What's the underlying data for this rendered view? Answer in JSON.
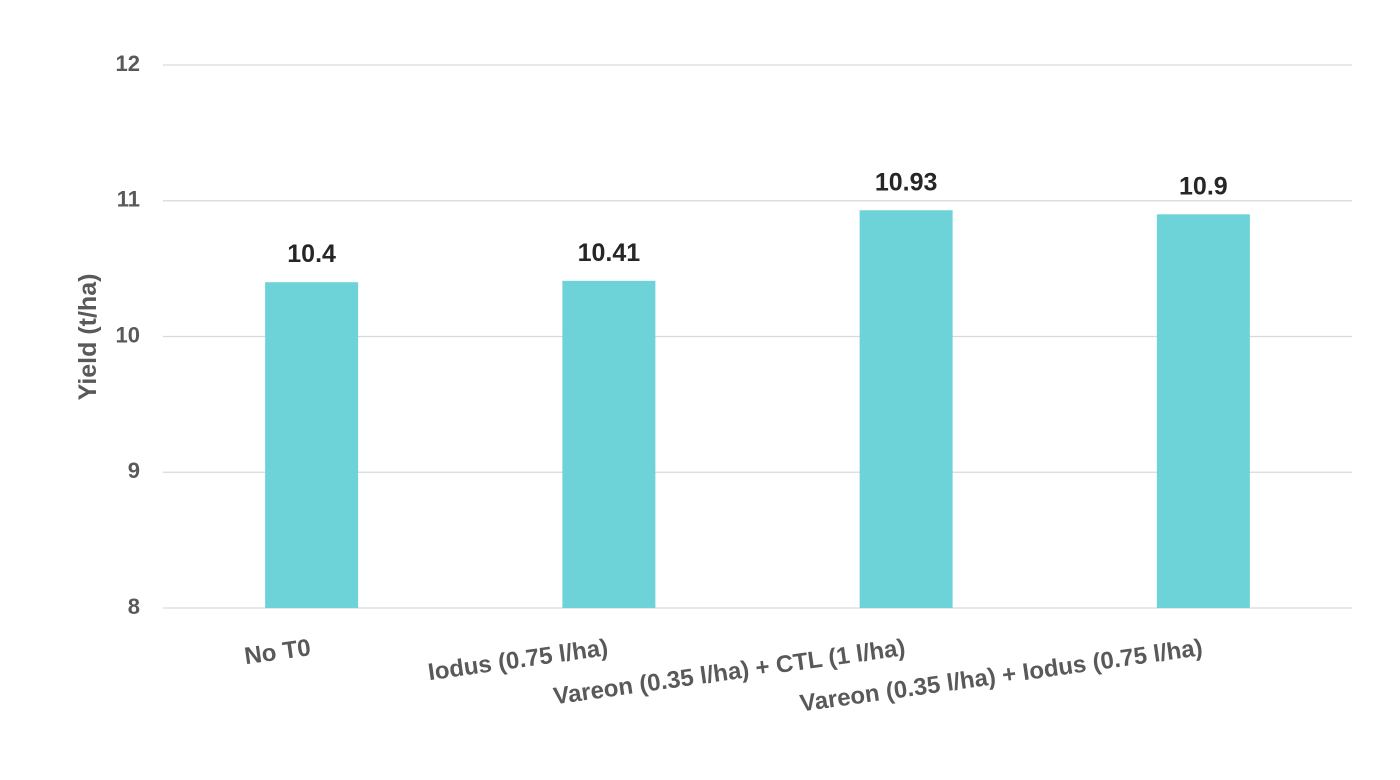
{
  "chart_data": {
    "type": "bar",
    "y_label": "Yield (t/ha)",
    "categories": [
      "No T0",
      "Iodus (0.75 l/ha)",
      "Vareon (0.35 l/ha) + CTL (1 l/ha)",
      "Vareon (0.35 l/ha) + Iodus (0.75 l/ha)"
    ],
    "values": [
      10.4,
      10.41,
      10.93,
      10.9
    ],
    "color": "#6dd3d8",
    "ylim": [
      8,
      12
    ],
    "yticks": [
      8,
      9,
      10,
      11,
      12
    ],
    "grid": true
  }
}
